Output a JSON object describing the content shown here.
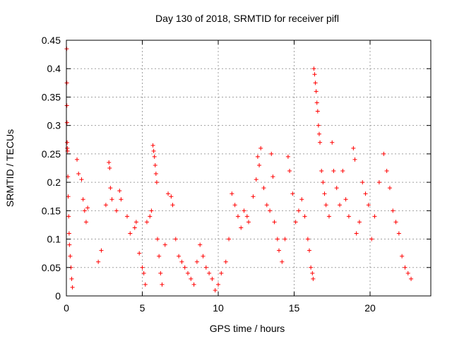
{
  "chart_data": {
    "type": "scatter",
    "title": "Day 130 of 2018, SRMTID for receiver pifl",
    "xlabel": "GPS time / hours",
    "ylabel": "SRMTID / TECUs",
    "xlim": [
      0,
      24
    ],
    "ylim": [
      0,
      0.45
    ],
    "xticks": [
      0,
      5,
      10,
      15,
      20
    ],
    "xtick_labels": [
      "0",
      "5",
      "10",
      "15",
      "20"
    ],
    "yticks": [
      0,
      0.05,
      0.1,
      0.15,
      0.2,
      0.25,
      0.3,
      0.35,
      0.4,
      0.45
    ],
    "ytick_labels": [
      "0",
      "0.05",
      "0.1",
      "0.15",
      "0.2",
      "0.25",
      "0.3",
      "0.35",
      "0.4",
      "0.45"
    ],
    "grid": true,
    "marker": "plus",
    "color": "#ff0000",
    "series": [
      {
        "name": "SRMTID",
        "points": [
          [
            0.02,
            0.435
          ],
          [
            0.03,
            0.375
          ],
          [
            0.03,
            0.335
          ],
          [
            0.04,
            0.305
          ],
          [
            0.05,
            0.27
          ],
          [
            0.06,
            0.26
          ],
          [
            0.08,
            0.255
          ],
          [
            0.1,
            0.21
          ],
          [
            0.12,
            0.175
          ],
          [
            0.15,
            0.14
          ],
          [
            0.18,
            0.11
          ],
          [
            0.2,
            0.09
          ],
          [
            0.25,
            0.07
          ],
          [
            0.3,
            0.05
          ],
          [
            0.35,
            0.03
          ],
          [
            0.4,
            0.015
          ],
          [
            0.7,
            0.24
          ],
          [
            0.8,
            0.215
          ],
          [
            1.0,
            0.205
          ],
          [
            1.1,
            0.17
          ],
          [
            1.2,
            0.15
          ],
          [
            1.3,
            0.13
          ],
          [
            1.4,
            0.155
          ],
          [
            2.1,
            0.06
          ],
          [
            2.3,
            0.08
          ],
          [
            2.6,
            0.16
          ],
          [
            2.8,
            0.235
          ],
          [
            2.85,
            0.225
          ],
          [
            2.9,
            0.19
          ],
          [
            3.0,
            0.17
          ],
          [
            3.3,
            0.15
          ],
          [
            3.5,
            0.185
          ],
          [
            3.6,
            0.17
          ],
          [
            4.0,
            0.14
          ],
          [
            4.2,
            0.11
          ],
          [
            4.5,
            0.12
          ],
          [
            4.6,
            0.13
          ],
          [
            4.8,
            0.075
          ],
          [
            5.0,
            0.05
          ],
          [
            5.1,
            0.04
          ],
          [
            5.2,
            0.02
          ],
          [
            5.3,
            0.13
          ],
          [
            5.5,
            0.14
          ],
          [
            5.6,
            0.15
          ],
          [
            5.7,
            0.265
          ],
          [
            5.75,
            0.255
          ],
          [
            5.8,
            0.245
          ],
          [
            5.85,
            0.23
          ],
          [
            5.9,
            0.215
          ],
          [
            5.95,
            0.2
          ],
          [
            6.0,
            0.1
          ],
          [
            6.1,
            0.07
          ],
          [
            6.2,
            0.04
          ],
          [
            6.3,
            0.02
          ],
          [
            6.5,
            0.09
          ],
          [
            6.7,
            0.18
          ],
          [
            6.9,
            0.175
          ],
          [
            7.0,
            0.16
          ],
          [
            7.2,
            0.1
          ],
          [
            7.4,
            0.07
          ],
          [
            7.6,
            0.06
          ],
          [
            7.8,
            0.05
          ],
          [
            8.0,
            0.04
          ],
          [
            8.2,
            0.03
          ],
          [
            8.4,
            0.02
          ],
          [
            8.6,
            0.06
          ],
          [
            8.8,
            0.09
          ],
          [
            9.0,
            0.07
          ],
          [
            9.2,
            0.05
          ],
          [
            9.4,
            0.04
          ],
          [
            9.6,
            0.03
          ],
          [
            9.8,
            0.01
          ],
          [
            10.0,
            0.02
          ],
          [
            10.2,
            0.04
          ],
          [
            10.5,
            0.06
          ],
          [
            10.7,
            0.1
          ],
          [
            10.9,
            0.18
          ],
          [
            11.1,
            0.16
          ],
          [
            11.3,
            0.14
          ],
          [
            11.5,
            0.12
          ],
          [
            11.7,
            0.15
          ],
          [
            11.9,
            0.14
          ],
          [
            12.0,
            0.13
          ],
          [
            12.3,
            0.175
          ],
          [
            12.5,
            0.205
          ],
          [
            12.6,
            0.245
          ],
          [
            12.7,
            0.23
          ],
          [
            12.8,
            0.26
          ],
          [
            13.0,
            0.19
          ],
          [
            13.2,
            0.16
          ],
          [
            13.4,
            0.15
          ],
          [
            13.5,
            0.25
          ],
          [
            13.6,
            0.21
          ],
          [
            13.7,
            0.13
          ],
          [
            13.9,
            0.1
          ],
          [
            14.0,
            0.08
          ],
          [
            14.2,
            0.06
          ],
          [
            14.4,
            0.1
          ],
          [
            14.6,
            0.245
          ],
          [
            14.7,
            0.22
          ],
          [
            14.9,
            0.18
          ],
          [
            15.1,
            0.13
          ],
          [
            15.3,
            0.15
          ],
          [
            15.5,
            0.17
          ],
          [
            15.7,
            0.14
          ],
          [
            15.9,
            0.1
          ],
          [
            16.0,
            0.08
          ],
          [
            16.1,
            0.05
          ],
          [
            16.2,
            0.04
          ],
          [
            16.25,
            0.03
          ],
          [
            16.3,
            0.4
          ],
          [
            16.35,
            0.39
          ],
          [
            16.4,
            0.375
          ],
          [
            16.45,
            0.36
          ],
          [
            16.5,
            0.34
          ],
          [
            16.55,
            0.325
          ],
          [
            16.6,
            0.3
          ],
          [
            16.65,
            0.285
          ],
          [
            16.7,
            0.27
          ],
          [
            16.8,
            0.22
          ],
          [
            16.9,
            0.2
          ],
          [
            17.0,
            0.18
          ],
          [
            17.1,
            0.16
          ],
          [
            17.3,
            0.14
          ],
          [
            17.5,
            0.27
          ],
          [
            17.6,
            0.22
          ],
          [
            17.8,
            0.19
          ],
          [
            18.0,
            0.16
          ],
          [
            18.2,
            0.22
          ],
          [
            18.4,
            0.17
          ],
          [
            18.6,
            0.14
          ],
          [
            18.9,
            0.26
          ],
          [
            19.0,
            0.24
          ],
          [
            19.1,
            0.11
          ],
          [
            19.3,
            0.13
          ],
          [
            19.5,
            0.2
          ],
          [
            19.7,
            0.18
          ],
          [
            19.9,
            0.16
          ],
          [
            20.1,
            0.1
          ],
          [
            20.3,
            0.14
          ],
          [
            20.6,
            0.2
          ],
          [
            20.9,
            0.25
          ],
          [
            21.1,
            0.22
          ],
          [
            21.3,
            0.19
          ],
          [
            21.5,
            0.15
          ],
          [
            21.7,
            0.13
          ],
          [
            21.9,
            0.11
          ],
          [
            22.1,
            0.07
          ],
          [
            22.3,
            0.05
          ],
          [
            22.5,
            0.04
          ],
          [
            22.7,
            0.03
          ]
        ]
      }
    ]
  }
}
